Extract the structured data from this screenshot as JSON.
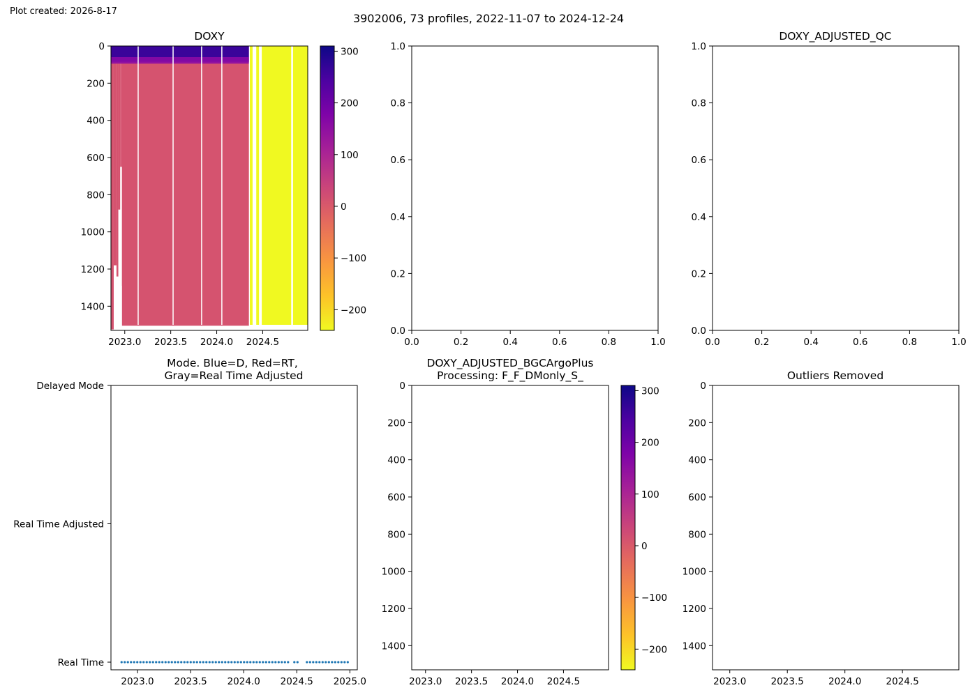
{
  "plot_created": "Plot created: 2026-8-17",
  "suptitle": "3902006, 73 profiles, 2022-11-07 to 2024-12-24",
  "colors": {
    "doxy_fill": "#d5536f",
    "surface_high": "#3a049a",
    "surface_mid": "#8b0aa5",
    "adjusted_fill": "#f0f921",
    "mode_points": "#1f77b4"
  },
  "chart_data": [
    {
      "id": "doxy",
      "type": "heatmap",
      "title": "DOXY",
      "xlabel": "",
      "ylabel": "",
      "xlim": [
        2022.85,
        2024.99
      ],
      "ylim": [
        1530,
        0
      ],
      "y_inverted": true,
      "x_ticks": [
        2023.0,
        2023.5,
        2024.0,
        2024.5
      ],
      "x_tick_labels": [
        "2023.0",
        "2023.5",
        "2024.0",
        "2024.5"
      ],
      "y_ticks": [
        0,
        200,
        400,
        600,
        800,
        1000,
        1200,
        1400
      ],
      "y_tick_labels": [
        "0",
        "200",
        "400",
        "600",
        "800",
        "1000",
        "1200",
        "1400"
      ],
      "colormap": "plasma",
      "colorbar": {
        "range": [
          -240,
          310
        ],
        "ticks": [
          300,
          200,
          100,
          0,
          -100,
          -200
        ],
        "tick_labels": [
          "300",
          "200",
          "100",
          "0",
          "−100",
          "−200"
        ]
      },
      "note": "",
      "bulk_value": 25,
      "surface_value": 250,
      "adjusted_value": -240
    },
    {
      "id": "blank-top-middle",
      "type": "scatter",
      "title": "",
      "xlim": [
        0,
        1
      ],
      "ylim": [
        0,
        1
      ],
      "x_ticks": [
        0,
        0.2,
        0.4,
        0.6,
        0.8,
        1.0
      ],
      "x_tick_labels": [
        "0.0",
        "0.2",
        "0.4",
        "0.6",
        "0.8",
        "1.0"
      ],
      "y_ticks": [
        0,
        0.2,
        0.4,
        0.6,
        0.8,
        1.0
      ],
      "y_tick_labels": [
        "0.0",
        "0.2",
        "0.4",
        "0.6",
        "0.8",
        "1.0"
      ]
    },
    {
      "id": "doxy-adjusted-qc",
      "type": "scatter",
      "title": "DOXY_ADJUSTED_QC",
      "xlim": [
        0,
        1
      ],
      "ylim": [
        0,
        1
      ],
      "x_ticks": [
        0,
        0.2,
        0.4,
        0.6,
        0.8,
        1.0
      ],
      "x_tick_labels": [
        "0.0",
        "0.2",
        "0.4",
        "0.6",
        "0.8",
        "1.0"
      ],
      "y_ticks": [
        0,
        0.2,
        0.4,
        0.6,
        0.8,
        1.0
      ],
      "y_tick_labels": [
        "0.0",
        "0.2",
        "0.4",
        "0.6",
        "0.8",
        "1.0"
      ]
    },
    {
      "id": "mode",
      "type": "scatter",
      "title_line1": "Mode. Blue=D, Red=RT,",
      "title_line2": "Gray=Real Time Adjusted",
      "xlim": [
        2022.75,
        2025.07
      ],
      "ylim": [
        0,
        2
      ],
      "x_ticks": [
        2023.0,
        2023.5,
        2024.0,
        2024.5,
        2025.0
      ],
      "x_tick_labels": [
        "2023.0",
        "2023.5",
        "2024.0",
        "2024.5",
        "2025.0"
      ],
      "y_ticks": [
        2,
        1,
        0
      ],
      "y_tick_labels": [
        "Delayed Mode",
        "Real Time Adjusted",
        "Real Time"
      ],
      "points_y": 0,
      "gap": [
        2024.42,
        2024.58
      ],
      "n_profiles": 73,
      "x_start": 2022.85,
      "x_end": 2024.98
    },
    {
      "id": "doxy-adjusted-bgcargoplus",
      "type": "heatmap",
      "title_line1": "DOXY_ADJUSTED_BGCArgoPlus",
      "title_line2": "Processing: F_F_DMonly_S_",
      "xlim": [
        2022.85,
        2024.99
      ],
      "ylim": [
        1530,
        0
      ],
      "x_ticks": [
        2023.0,
        2023.5,
        2024.0,
        2024.5
      ],
      "x_tick_labels": [
        "2023.0",
        "2023.5",
        "2024.0",
        "2024.5"
      ],
      "y_ticks": [
        0,
        200,
        400,
        600,
        800,
        1000,
        1200,
        1400
      ],
      "y_tick_labels": [
        "0",
        "200",
        "400",
        "600",
        "800",
        "1000",
        "1200",
        "1400"
      ],
      "colorbar": {
        "range": [
          -240,
          310
        ],
        "ticks": [
          300,
          200,
          100,
          0,
          -100,
          -200
        ],
        "tick_labels": [
          "300",
          "200",
          "100",
          "0",
          "−100",
          "−200"
        ]
      }
    },
    {
      "id": "outliers-removed",
      "type": "heatmap",
      "title": "Outliers Removed",
      "xlim": [
        2022.85,
        2024.99
      ],
      "ylim": [
        1530,
        0
      ],
      "x_ticks": [
        2023.0,
        2023.5,
        2024.0,
        2024.5
      ],
      "x_tick_labels": [
        "2023.0",
        "2023.5",
        "2024.0",
        "2024.5"
      ],
      "y_ticks": [
        0,
        200,
        400,
        600,
        800,
        1000,
        1200,
        1400
      ],
      "y_tick_labels": [
        "0",
        "200",
        "400",
        "600",
        "800",
        "1000",
        "1200",
        "1400"
      ]
    }
  ]
}
